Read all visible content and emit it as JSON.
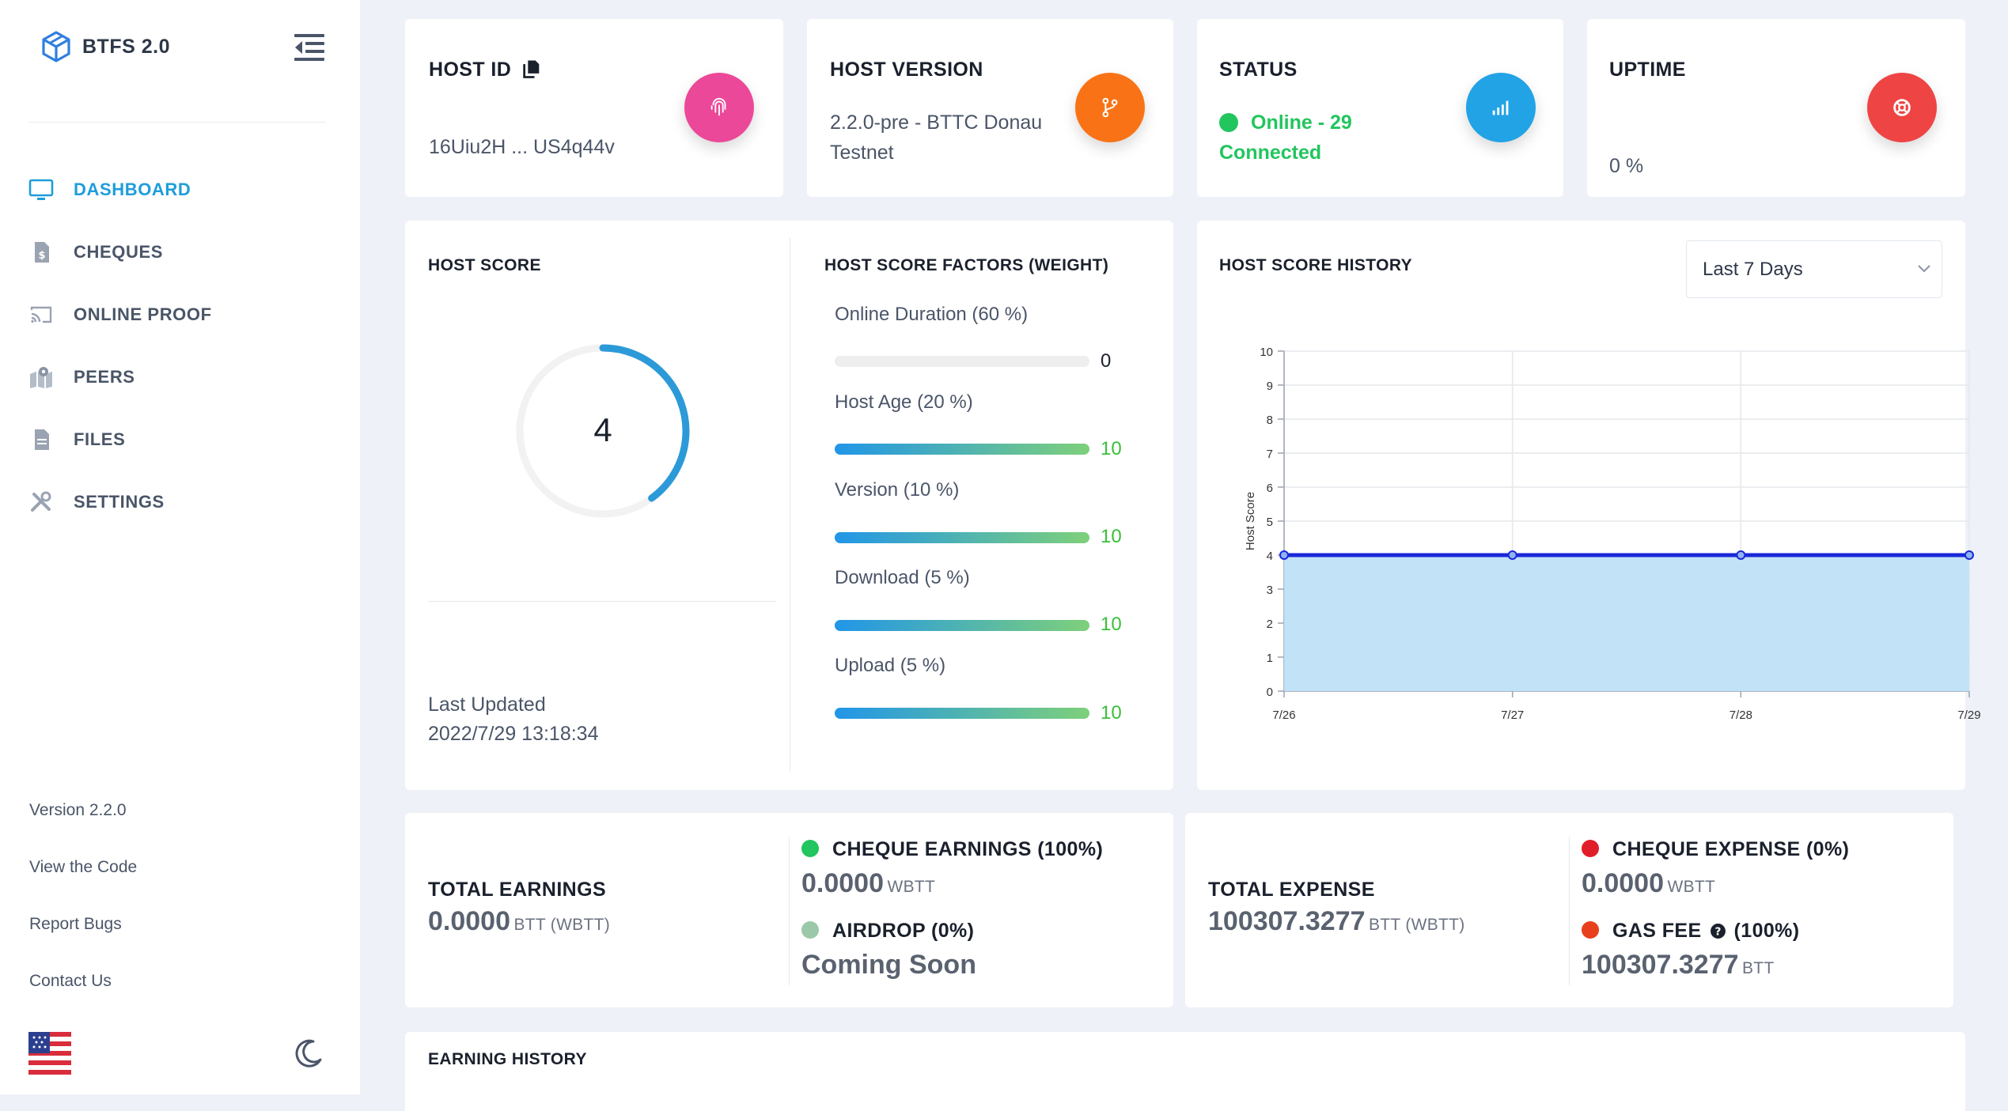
{
  "brand": {
    "name": "BTFS 2.0",
    "logo_icon": "cube-icon"
  },
  "nav": [
    {
      "label": "DASHBOARD",
      "icon": "monitor-icon",
      "active": true
    },
    {
      "label": "CHEQUES",
      "icon": "document-dollar-icon"
    },
    {
      "label": "ONLINE PROOF",
      "icon": "cast-icon"
    },
    {
      "label": "PEERS",
      "icon": "map-pin-icon"
    },
    {
      "label": "FILES",
      "icon": "file-icon"
    },
    {
      "label": "SETTINGS",
      "icon": "tools-icon"
    }
  ],
  "footer": {
    "version": "Version 2.2.0",
    "view_code": "View the Code",
    "report_bugs": "Report Bugs",
    "contact": "Contact Us"
  },
  "colors": {
    "accent": "#1e9ddb",
    "pink": "#ec4899",
    "orange": "#f97316",
    "blue": "#22a3e6",
    "red": "#ef4444",
    "green": "#22c55e",
    "chart_fill": "#bfe0f7",
    "chart_line": "#1a28d8"
  },
  "host_id": {
    "title": "HOST ID",
    "value": "16Uiu2H ... US4q44v",
    "icon": "fingerprint-icon"
  },
  "host_version": {
    "title": "HOST VERSION",
    "value": "2.2.0-pre - BTTC Donau Testnet",
    "icon": "git-branch-icon"
  },
  "status": {
    "title": "STATUS",
    "value": "Online - 29 Connected",
    "icon": "signal-icon"
  },
  "uptime": {
    "title": "UPTIME",
    "value": "0 %",
    "icon": "lifebuoy-icon"
  },
  "host_score": {
    "title": "HOST SCORE",
    "score": "4",
    "score_fraction": 0.4,
    "last_updated_label": "Last Updated",
    "last_updated_value": "2022/7/29 13:18:34"
  },
  "factors": {
    "title": "HOST SCORE FACTORS (WEIGHT)",
    "items": [
      {
        "label": "Online Duration (60 %)",
        "value": "0",
        "fill": 0
      },
      {
        "label": "Host Age (20 %)",
        "value": "10",
        "fill": 1
      },
      {
        "label": "Version (10 %)",
        "value": "10",
        "fill": 1
      },
      {
        "label": "Download (5 %)",
        "value": "10",
        "fill": 1
      },
      {
        "label": "Upload (5 %)",
        "value": "10",
        "fill": 1
      }
    ]
  },
  "history": {
    "title": "HOST SCORE HISTORY",
    "range_select": "Last 7 Days"
  },
  "chart_data": {
    "type": "area",
    "categories": [
      "7/26",
      "7/27",
      "7/28",
      "7/29"
    ],
    "values": [
      4,
      4,
      4,
      4
    ],
    "ylabel": "Host Score",
    "ylim": [
      0,
      10
    ],
    "yticks": [
      "0",
      "1",
      "2",
      "3",
      "4",
      "5",
      "6",
      "7",
      "8",
      "9",
      "10"
    ],
    "grid": true
  },
  "earnings": {
    "title": "TOTAL EARNINGS",
    "value": "0.0000",
    "unit": "BTT (WBTT)",
    "cheque_label": "CHEQUE EARNINGS (100%)",
    "cheque_value": "0.0000",
    "cheque_unit": "WBTT",
    "airdrop_label": "AIRDROP (0%)",
    "airdrop_value": "Coming Soon"
  },
  "expense": {
    "title": "TOTAL EXPENSE",
    "value": "100307.3277",
    "unit": "BTT (WBTT)",
    "cheque_label": "CHEQUE EXPENSE (0%)",
    "cheque_value": "0.0000",
    "cheque_unit": "WBTT",
    "gas_label": "GAS FEE",
    "gas_pct": "(100%)",
    "gas_value": "100307.3277",
    "gas_unit": "BTT"
  },
  "earning_history": {
    "title": "EARNING HISTORY"
  }
}
